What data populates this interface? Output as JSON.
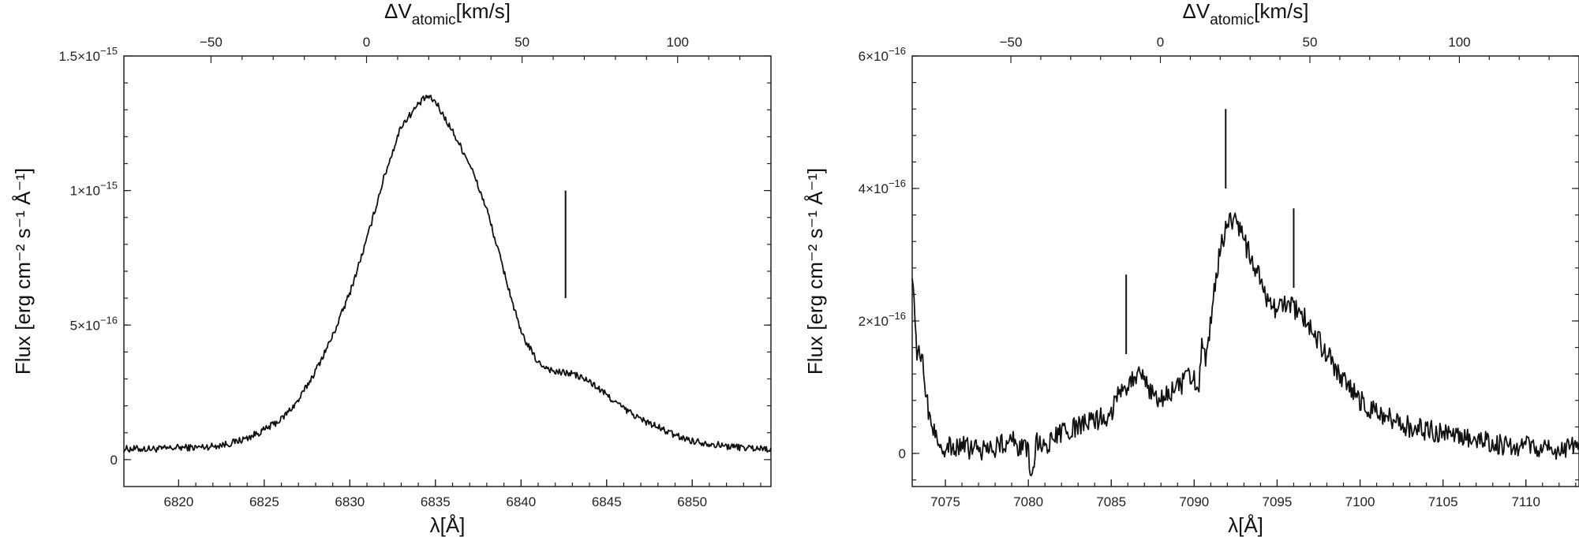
{
  "chart_data": [
    {
      "type": "line",
      "xlabel": "λ[Å]",
      "ylabel": "Flux [erg cm⁻² s⁻¹ Å⁻¹]",
      "top_xlabel_main": "ΔV",
      "top_xlabel_sub": "atomic",
      "top_xlabel_unit": "[km/s]",
      "xlim": [
        6816.8,
        6854.6
      ],
      "ylim": [
        -1e-16,
        1.5e-15
      ],
      "top_xlim": [
        -78.0,
        130.0
      ],
      "x_ticks": [
        6820,
        6825,
        6830,
        6835,
        6840,
        6845,
        6850
      ],
      "x_tick_labels": [
        "6820",
        "6825",
        "6830",
        "6835",
        "6840",
        "6845",
        "6850"
      ],
      "y_ticks": [
        0,
        5e-16,
        1e-15,
        1.5e-15
      ],
      "y_tick_mantissa": [
        "0",
        "5×10",
        "1×10",
        "1.5×10"
      ],
      "y_tick_exponent": [
        "",
        "−16",
        "−15",
        "−15"
      ],
      "top_ticks": [
        -50,
        0,
        50,
        100
      ],
      "top_tick_labels": [
        "−50",
        "0",
        "50",
        "100"
      ],
      "grid": false,
      "markers": [
        {
          "x": 6842.6,
          "y_from": 6e-16,
          "y_to": 1e-15
        }
      ],
      "series": [
        {
          "x": [
            6816.8,
            6818,
            6819,
            6820,
            6821,
            6822,
            6823,
            6824,
            6825,
            6826,
            6827,
            6828,
            6829,
            6830,
            6831,
            6832,
            6833,
            6834,
            6834.5,
            6835,
            6836,
            6837,
            6838,
            6839,
            6840,
            6841,
            6842,
            6843,
            6844,
            6845,
            6846,
            6847,
            6848,
            6849,
            6850,
            6851,
            6852,
            6853,
            6854.6
          ],
          "y": [
            4e-17,
            4e-17,
            4e-17,
            4.5e-17,
            4.5e-17,
            5e-17,
            6e-17,
            8e-17,
            1.1e-16,
            1.5e-16,
            2.2e-16,
            3.3e-16,
            4.6e-16,
            6.2e-16,
            8.2e-16,
            1.05e-15,
            1.24e-15,
            1.32e-15,
            1.35e-15,
            1.33e-15,
            1.22e-15,
            1.1e-15,
            9.3e-16,
            7e-16,
            4.7e-16,
            3.6e-16,
            3.25e-16,
            3.2e-16,
            2.9e-16,
            2.4e-16,
            1.9e-16,
            1.5e-16,
            1.2e-16,
            9e-17,
            7e-17,
            6e-17,
            5e-17,
            4.5e-17,
            4e-17
          ]
        }
      ]
    },
    {
      "type": "line",
      "xlabel": "λ[Å]",
      "ylabel": "Flux [erg cm⁻² s⁻¹ Å⁻¹]",
      "top_xlabel_main": "ΔV",
      "top_xlabel_sub": "atomic",
      "top_xlabel_unit": "[km/s]",
      "xlim": [
        7073.0,
        7113.2
      ],
      "ylim": [
        -5e-17,
        6e-16
      ],
      "top_xlim": [
        -83.0,
        140.0
      ],
      "x_ticks": [
        7075,
        7080,
        7085,
        7090,
        7095,
        7100,
        7105,
        7110
      ],
      "x_tick_labels": [
        "7075",
        "7080",
        "7085",
        "7090",
        "7095",
        "7100",
        "7105",
        "7110"
      ],
      "y_ticks": [
        0,
        2e-16,
        4e-16,
        6e-16
      ],
      "y_tick_mantissa": [
        "0",
        "2×10",
        "4×10",
        "6×10"
      ],
      "y_tick_exponent": [
        "",
        "−16",
        "−16",
        "−16"
      ],
      "top_ticks": [
        -50,
        0,
        50,
        100
      ],
      "top_tick_labels": [
        "−50",
        "0",
        "50",
        "100"
      ],
      "grid": false,
      "markers": [
        {
          "x": 7085.9,
          "y_from": 1.5e-16,
          "y_to": 2.7e-16
        },
        {
          "x": 7091.9,
          "y_from": 4e-16,
          "y_to": 5.2e-16
        },
        {
          "x": 7096.0,
          "y_from": 2.5e-16,
          "y_to": 3.7e-16
        }
      ],
      "series": [
        {
          "x": [
            7073.0,
            7073.3,
            7073.6,
            7074.0,
            7074.5,
            7075.0,
            7076.0,
            7077.0,
            7078.0,
            7079.0,
            7080.0,
            7080.2,
            7080.5,
            7081.0,
            7082.0,
            7083.0,
            7084.0,
            7085.0,
            7085.5,
            7086.0,
            7086.5,
            7087.0,
            7087.5,
            7088.0,
            7089.0,
            7090.0,
            7090.2,
            7090.5,
            7090.7,
            7091.0,
            7091.5,
            7092.0,
            7092.5,
            7093.0,
            7093.5,
            7094.0,
            7094.5,
            7095.0,
            7095.5,
            7096.0,
            7096.5,
            7097.0,
            7098.0,
            7099.0,
            7100.0,
            7101.0,
            7102.0,
            7103.0,
            7104.0,
            7105.0,
            7106.0,
            7107.0,
            7108.0,
            7110.0,
            7112.0,
            7113.2
          ],
          "y": [
            2.8e-16,
            1.5e-16,
            1.4e-16,
            6e-17,
            2e-17,
            1e-17,
            1e-17,
            5e-18,
            1e-17,
            2e-17,
            0,
            -4e-17,
            2e-17,
            1e-17,
            3e-17,
            4e-17,
            5e-17,
            6e-17,
            1e-16,
            1.05e-16,
            1.2e-16,
            1.1e-16,
            9e-17,
            8e-17,
            1e-16,
            1.2e-16,
            8e-17,
            1.7e-16,
            1.3e-16,
            2e-16,
            3e-16,
            3.5e-16,
            3.5e-16,
            3.2e-16,
            2.9e-16,
            2.6e-16,
            2.2e-16,
            2.2e-16,
            2.25e-16,
            2.2e-16,
            2.1e-16,
            1.9e-16,
            1.5e-16,
            1.1e-16,
            8e-17,
            6e-17,
            5e-17,
            4e-17,
            3.5e-17,
            3e-17,
            2.5e-17,
            2e-17,
            1.5e-17,
            1e-17,
            5e-18,
            1e-17
          ]
        }
      ]
    }
  ]
}
